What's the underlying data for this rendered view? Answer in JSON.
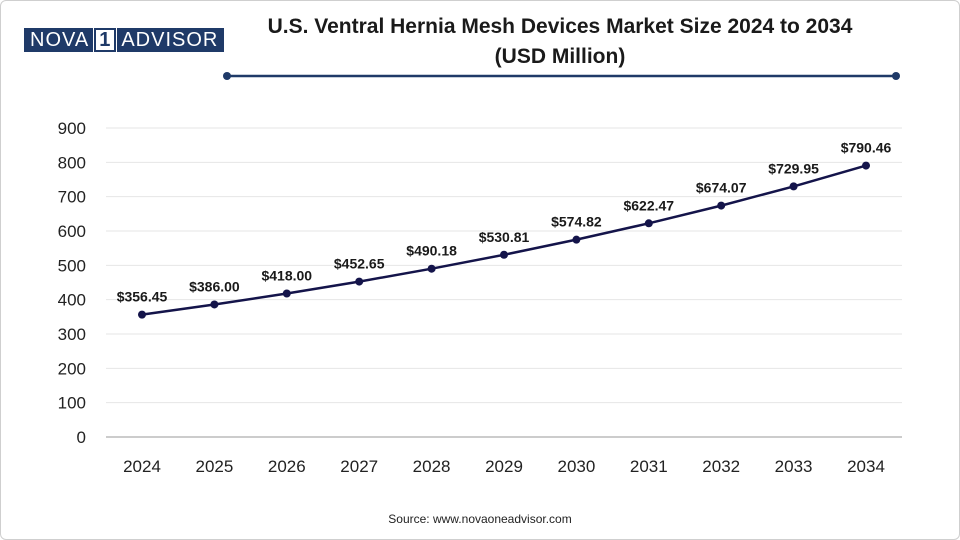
{
  "logo": {
    "left": "NOVA",
    "mid": "1",
    "right": "ADVISOR"
  },
  "title_line1": "U.S. Ventral Hernia Mesh Devices Market Size 2024 to 2034",
  "title_line2": "(USD Million)",
  "source": "Source: www.novaoneadvisor.com",
  "colors": {
    "line": "#14144a",
    "marker": "#14144a",
    "grid": "#e6e6e6",
    "axis": "#bbbbbb",
    "accent_rule": "#1f3a68"
  },
  "chart_data": {
    "type": "line",
    "title": "U.S. Ventral Hernia Mesh Devices Market Size 2024 to 2034 (USD Million)",
    "categories": [
      "2024",
      "2025",
      "2026",
      "2027",
      "2028",
      "2029",
      "2030",
      "2031",
      "2032",
      "2033",
      "2034"
    ],
    "series": [
      {
        "name": "Market Size (USD Million)",
        "values": [
          356.45,
          386.0,
          418.0,
          452.65,
          490.18,
          530.81,
          574.82,
          622.47,
          674.07,
          729.95,
          790.46
        ],
        "labels": [
          "$356.45",
          "$386.00",
          "$418.00",
          "$452.65",
          "$490.18",
          "$530.81",
          "$574.82",
          "$622.47",
          "$674.07",
          "$729.95",
          "$790.46"
        ]
      }
    ],
    "ylim": [
      0,
      900
    ],
    "yticks": [
      0,
      100,
      200,
      300,
      400,
      500,
      600,
      700,
      800,
      900
    ],
    "xlabel": "",
    "ylabel": "",
    "grid": true,
    "legend": "none"
  }
}
